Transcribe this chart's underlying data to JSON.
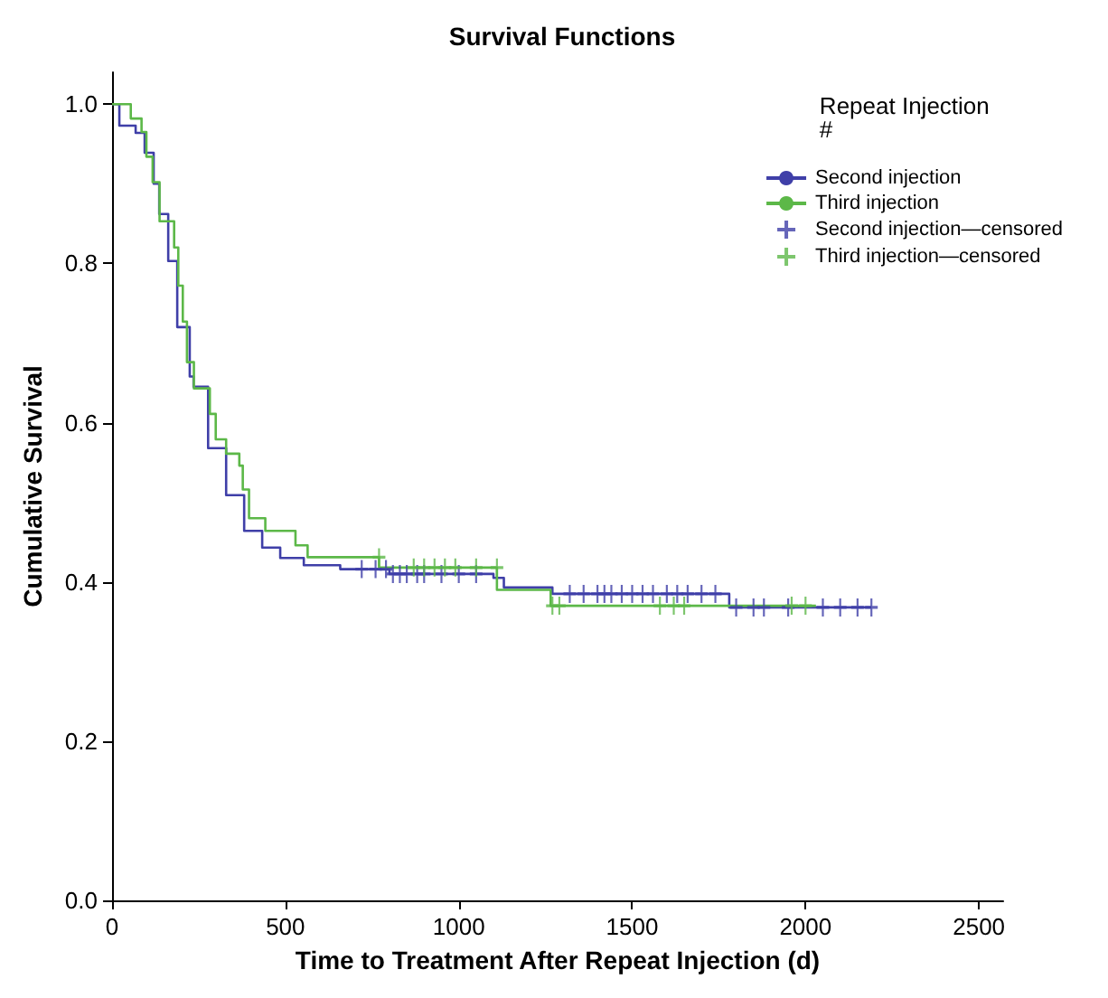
{
  "chart_data": {
    "type": "step",
    "title": "Survival Functions",
    "xlabel": "Time to Treatment After Repeat Injection (d)",
    "ylabel": "Cumulative Survival",
    "legend_title": "Repeat Injection #",
    "legend": "top right",
    "grid": false,
    "line_style": "solid",
    "xlim": [
      0,
      2570
    ],
    "xticks": [
      0,
      500,
      1000,
      1500,
      2000,
      2500
    ],
    "ylim": [
      0,
      1.04
    ],
    "yticks": [
      {
        "value": 0,
        "label": "0.0"
      },
      0.2,
      0.4,
      0.6,
      0.8,
      {
        "value": 1,
        "label": "1.0"
      }
    ],
    "series": [
      {
        "name": "Second injection",
        "type": "step",
        "color": "#3f3fa8",
        "x": [
          0,
          21,
          68,
          94,
          120,
          136,
          162,
          188,
          224,
          235,
          277,
          329,
          381,
          433,
          485,
          553,
          658,
          800,
          1100,
          1130,
          1270,
          1780,
          2190
        ],
        "values": [
          1,
          0.973,
          0.964,
          0.939,
          0.9,
          0.862,
          0.803,
          0.72,
          0.658,
          0.645,
          0.568,
          0.509,
          0.464,
          0.443,
          0.43,
          0.421,
          0.416,
          0.41,
          0.405,
          0.393,
          0.385,
          0.368,
          0.368
        ]
      },
      {
        "name": "Third injection",
        "type": "step",
        "color": "#5cb848",
        "x": [
          0,
          54,
          85,
          99,
          117,
          137,
          179,
          191,
          204,
          216,
          236,
          282,
          299,
          329,
          367,
          377,
          395,
          442,
          529,
          564,
          770,
          1110,
          1265,
          2030
        ],
        "values": [
          1,
          0.982,
          0.965,
          0.934,
          0.902,
          0.853,
          0.82,
          0.772,
          0.727,
          0.676,
          0.643,
          0.611,
          0.579,
          0.561,
          0.546,
          0.516,
          0.48,
          0.464,
          0.446,
          0.431,
          0.418,
          0.39,
          0.37,
          0.37
        ]
      },
      {
        "name": "Second injection—censored",
        "type": "scatter",
        "marker": "cross",
        "color": "#3f3fa8",
        "x": [
          720,
          760,
          790,
          810,
          830,
          850,
          880,
          900,
          950,
          1000,
          1050,
          1320,
          1360,
          1400,
          1420,
          1440,
          1470,
          1500,
          1530,
          1560,
          1600,
          1630,
          1660,
          1700,
          1740,
          1800,
          1850,
          1880,
          1950,
          2050,
          2100,
          2150,
          2190
        ],
        "values": [
          0.416,
          0.416,
          0.416,
          0.41,
          0.41,
          0.41,
          0.41,
          0.41,
          0.41,
          0.41,
          0.41,
          0.385,
          0.385,
          0.385,
          0.385,
          0.385,
          0.385,
          0.385,
          0.385,
          0.385,
          0.385,
          0.385,
          0.385,
          0.385,
          0.385,
          0.368,
          0.368,
          0.368,
          0.368,
          0.368,
          0.368,
          0.368,
          0.368
        ]
      },
      {
        "name": "Third injection—censored",
        "type": "scatter",
        "marker": "cross",
        "color": "#5cb848",
        "x": [
          770,
          870,
          900,
          930,
          960,
          990,
          1050,
          1110,
          1270,
          1290,
          1580,
          1620,
          1650,
          1960,
          2000
        ],
        "values": [
          0.431,
          0.418,
          0.418,
          0.418,
          0.418,
          0.418,
          0.418,
          0.418,
          0.37,
          0.37,
          0.37,
          0.37,
          0.37,
          0.37,
          0.37
        ]
      }
    ]
  }
}
